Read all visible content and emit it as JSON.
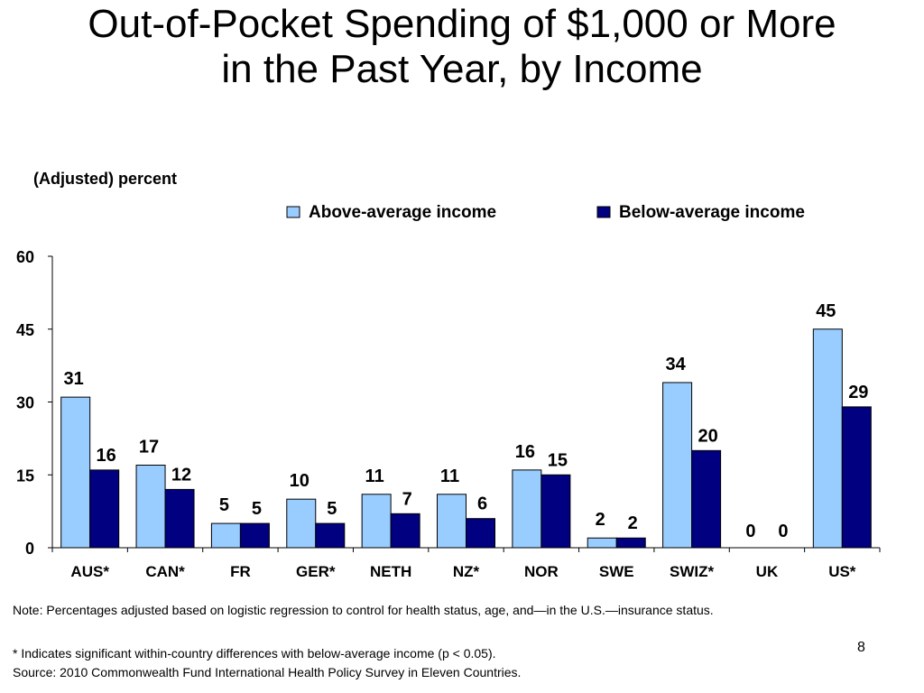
{
  "slide": {
    "title_lines": [
      "Out-of-Pocket Spending of $1,000 or More",
      "in the Past Year, by Income"
    ],
    "unit_label": "(Adjusted) percent",
    "note": "Note: Percentages adjusted based on logistic regression to control for health status, age, and—in the U.S.—insurance status.",
    "significance_note": "* Indicates significant within-country differences with below-average income (p < 0.05).",
    "source": "Source: 2010 Commonwealth Fund International Health Policy Survey in Eleven Countries.",
    "page_number": "8"
  },
  "chart_data": {
    "type": "bar",
    "title": "Out-of-Pocket Spending of $1,000 or More in the Past Year, by Income",
    "ylabel": "(Adjusted) percent",
    "xlabel": "",
    "ylim": [
      0,
      60
    ],
    "yticks": [
      0,
      15,
      30,
      45,
      60
    ],
    "grid": false,
    "legend_position": "top-right",
    "categories": [
      "AUS*",
      "CAN*",
      "FR",
      "GER*",
      "NETH",
      "NZ*",
      "NOR",
      "SWE",
      "SWIZ*",
      "UK",
      "US*"
    ],
    "series": [
      {
        "name": "Above-average income",
        "color": "#99ccff",
        "values": [
          31,
          17,
          5,
          10,
          11,
          11,
          16,
          2,
          34,
          0,
          45
        ]
      },
      {
        "name": "Below-average income",
        "color": "#000080",
        "values": [
          16,
          12,
          5,
          5,
          7,
          6,
          15,
          2,
          20,
          0,
          29
        ]
      }
    ]
  }
}
